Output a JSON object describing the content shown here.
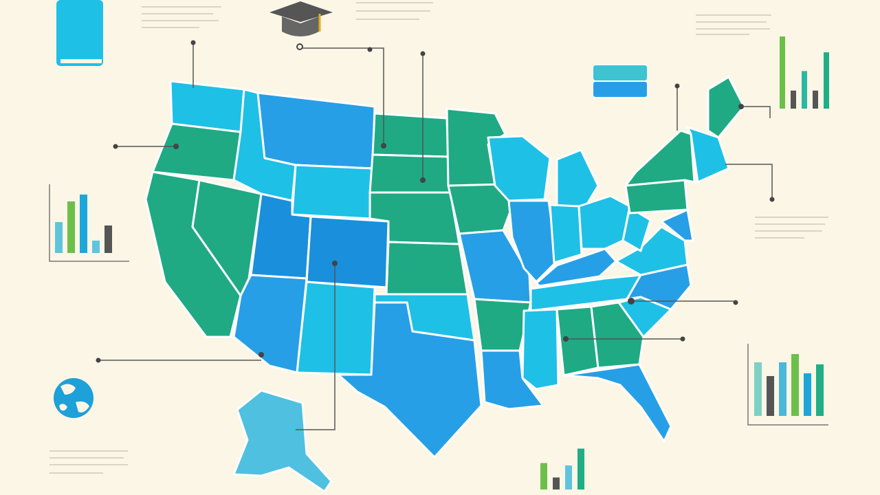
{
  "mini_charts": [
    {
      "values": [
        45,
        75,
        85,
        18,
        40
      ],
      "colors": [
        "#5fc4dc",
        "#6cc04a",
        "#1fa6d8",
        "#5fc4dc",
        "#555555"
      ]
    },
    {
      "values": [
        100,
        25,
        52,
        25,
        78
      ],
      "colors": [
        "#6cc04a",
        "#555555",
        "#2bb7a2",
        "#555555",
        "#1fae85"
      ]
    },
    {
      "values": [
        78,
        58,
        78,
        90,
        62,
        75
      ],
      "colors": [
        "#7fd0c4",
        "#555555",
        "#49b8d9",
        "#6cc04a",
        "#1fa6d8",
        "#1fae85"
      ]
    },
    {
      "values": [
        55,
        25,
        50,
        85
      ],
      "colors": [
        "#6cc04a",
        "#555555",
        "#5fc4dc",
        "#1fae85"
      ]
    }
  ]
}
